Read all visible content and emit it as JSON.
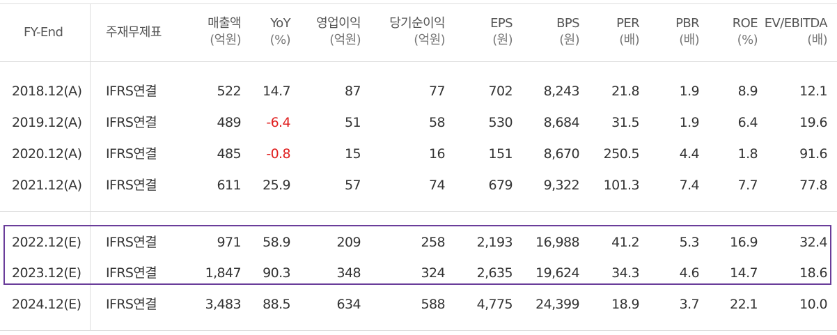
{
  "header": {
    "fy_end": "FY-End",
    "statement": "주재무제표",
    "columns": [
      {
        "title": "매출액",
        "unit": "(억원)"
      },
      {
        "title": "YoY",
        "unit": "(%)"
      },
      {
        "title": "영업이익",
        "unit": "(억원)"
      },
      {
        "title": "당기순이익",
        "unit": "(억원)"
      },
      {
        "title": "EPS",
        "unit": "(원)"
      },
      {
        "title": "BPS",
        "unit": "(원)"
      },
      {
        "title": "PER",
        "unit": "(배)"
      },
      {
        "title": "PBR",
        "unit": "(배)"
      },
      {
        "title": "ROE",
        "unit": "(%)"
      },
      {
        "title": "EV/EBITDA",
        "unit": "(배)"
      }
    ]
  },
  "rows": [
    {
      "fy": "2018.12(A)",
      "statement": "IFRS연결",
      "values": [
        "522",
        "14.7",
        "87",
        "77",
        "702",
        "8,243",
        "21.8",
        "1.9",
        "8.9",
        "12.1"
      ],
      "yoy_negative": false
    },
    {
      "fy": "2019.12(A)",
      "statement": "IFRS연결",
      "values": [
        "489",
        "-6.4",
        "51",
        "58",
        "530",
        "8,684",
        "31.5",
        "1.9",
        "6.4",
        "19.6"
      ],
      "yoy_negative": true
    },
    {
      "fy": "2020.12(A)",
      "statement": "IFRS연결",
      "values": [
        "485",
        "-0.8",
        "15",
        "16",
        "151",
        "8,670",
        "250.5",
        "4.4",
        "1.8",
        "91.6"
      ],
      "yoy_negative": true
    },
    {
      "fy": "2021.12(A)",
      "statement": "IFRS연결",
      "values": [
        "611",
        "25.9",
        "57",
        "74",
        "679",
        "9,322",
        "101.3",
        "7.4",
        "7.7",
        "77.8"
      ],
      "yoy_negative": false
    },
    {
      "fy": "2022.12(E)",
      "statement": "IFRS연결",
      "values": [
        "971",
        "58.9",
        "209",
        "258",
        "2,193",
        "16,988",
        "41.2",
        "5.3",
        "16.9",
        "32.4"
      ],
      "yoy_negative": false
    },
    {
      "fy": "2023.12(E)",
      "statement": "IFRS연결",
      "values": [
        "1,847",
        "90.3",
        "348",
        "324",
        "2,635",
        "19,624",
        "34.3",
        "4.6",
        "14.7",
        "18.6"
      ],
      "yoy_negative": false
    },
    {
      "fy": "2024.12(E)",
      "statement": "IFRS연결",
      "values": [
        "3,483",
        "88.5",
        "634",
        "588",
        "4,775",
        "24,399",
        "18.9",
        "3.7",
        "22.1",
        "10.0"
      ],
      "yoy_negative": false
    }
  ],
  "colors": {
    "negative": "#e02020",
    "highlight_border": "#6a3d9a",
    "grid": "#dddddd"
  }
}
